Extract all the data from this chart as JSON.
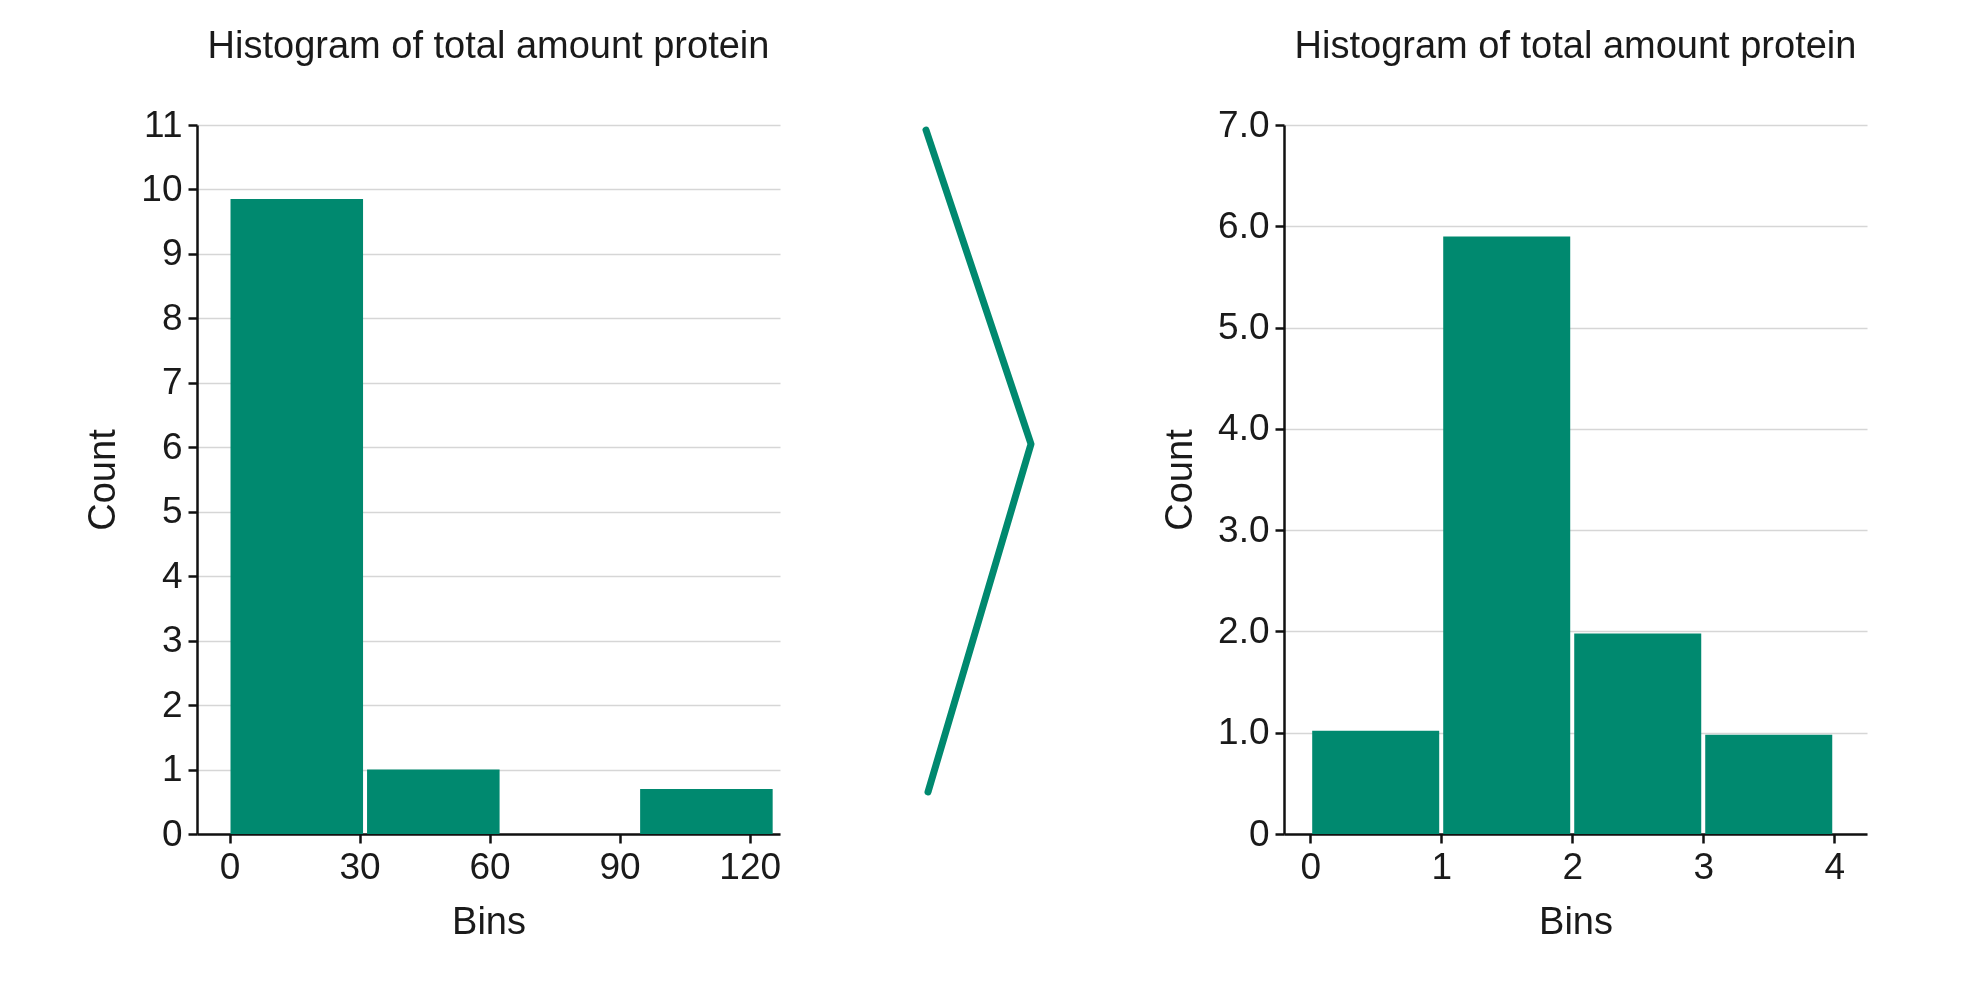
{
  "chart_data": [
    {
      "type": "histogram",
      "title": "Histogram of total amount protein",
      "xlabel": "Bins",
      "ylabel": "Count",
      "bins": [
        0,
        31.5,
        63,
        94.5,
        126
      ],
      "values": [
        9.85,
        1,
        0,
        0.7
      ],
      "color": "#00896f",
      "xlim": [
        -7.5,
        127
      ],
      "xticks": [
        0,
        30,
        60,
        90,
        120
      ],
      "ylim": [
        0,
        11
      ],
      "yticks": [
        0,
        1,
        2,
        3,
        4,
        5,
        6,
        7,
        8,
        9,
        10,
        11
      ],
      "grid": "y"
    },
    {
      "type": "histogram",
      "title": "Histogram of total amount protein",
      "xlabel": "Bins",
      "ylabel": "Count",
      "bins": [
        0,
        1,
        2,
        3,
        4
      ],
      "values": [
        1.02,
        5.9,
        1.98,
        0.98
      ],
      "color": "#00896f",
      "xlim": [
        -0.2,
        4.25
      ],
      "xticks": [
        0,
        1,
        2,
        3,
        4
      ],
      "ylim": [
        0,
        7
      ],
      "yticks": [
        0,
        {
          "value": 1,
          "label": "1.0"
        },
        {
          "value": 2,
          "label": "2.0"
        },
        {
          "value": 3,
          "label": "3.0"
        },
        {
          "value": 4,
          "label": "4.0"
        },
        {
          "value": 5,
          "label": "5.0"
        },
        {
          "value": 6,
          "label": "6.0"
        },
        {
          "value": 7,
          "label": "7.0"
        }
      ],
      "grid": "y"
    }
  ]
}
